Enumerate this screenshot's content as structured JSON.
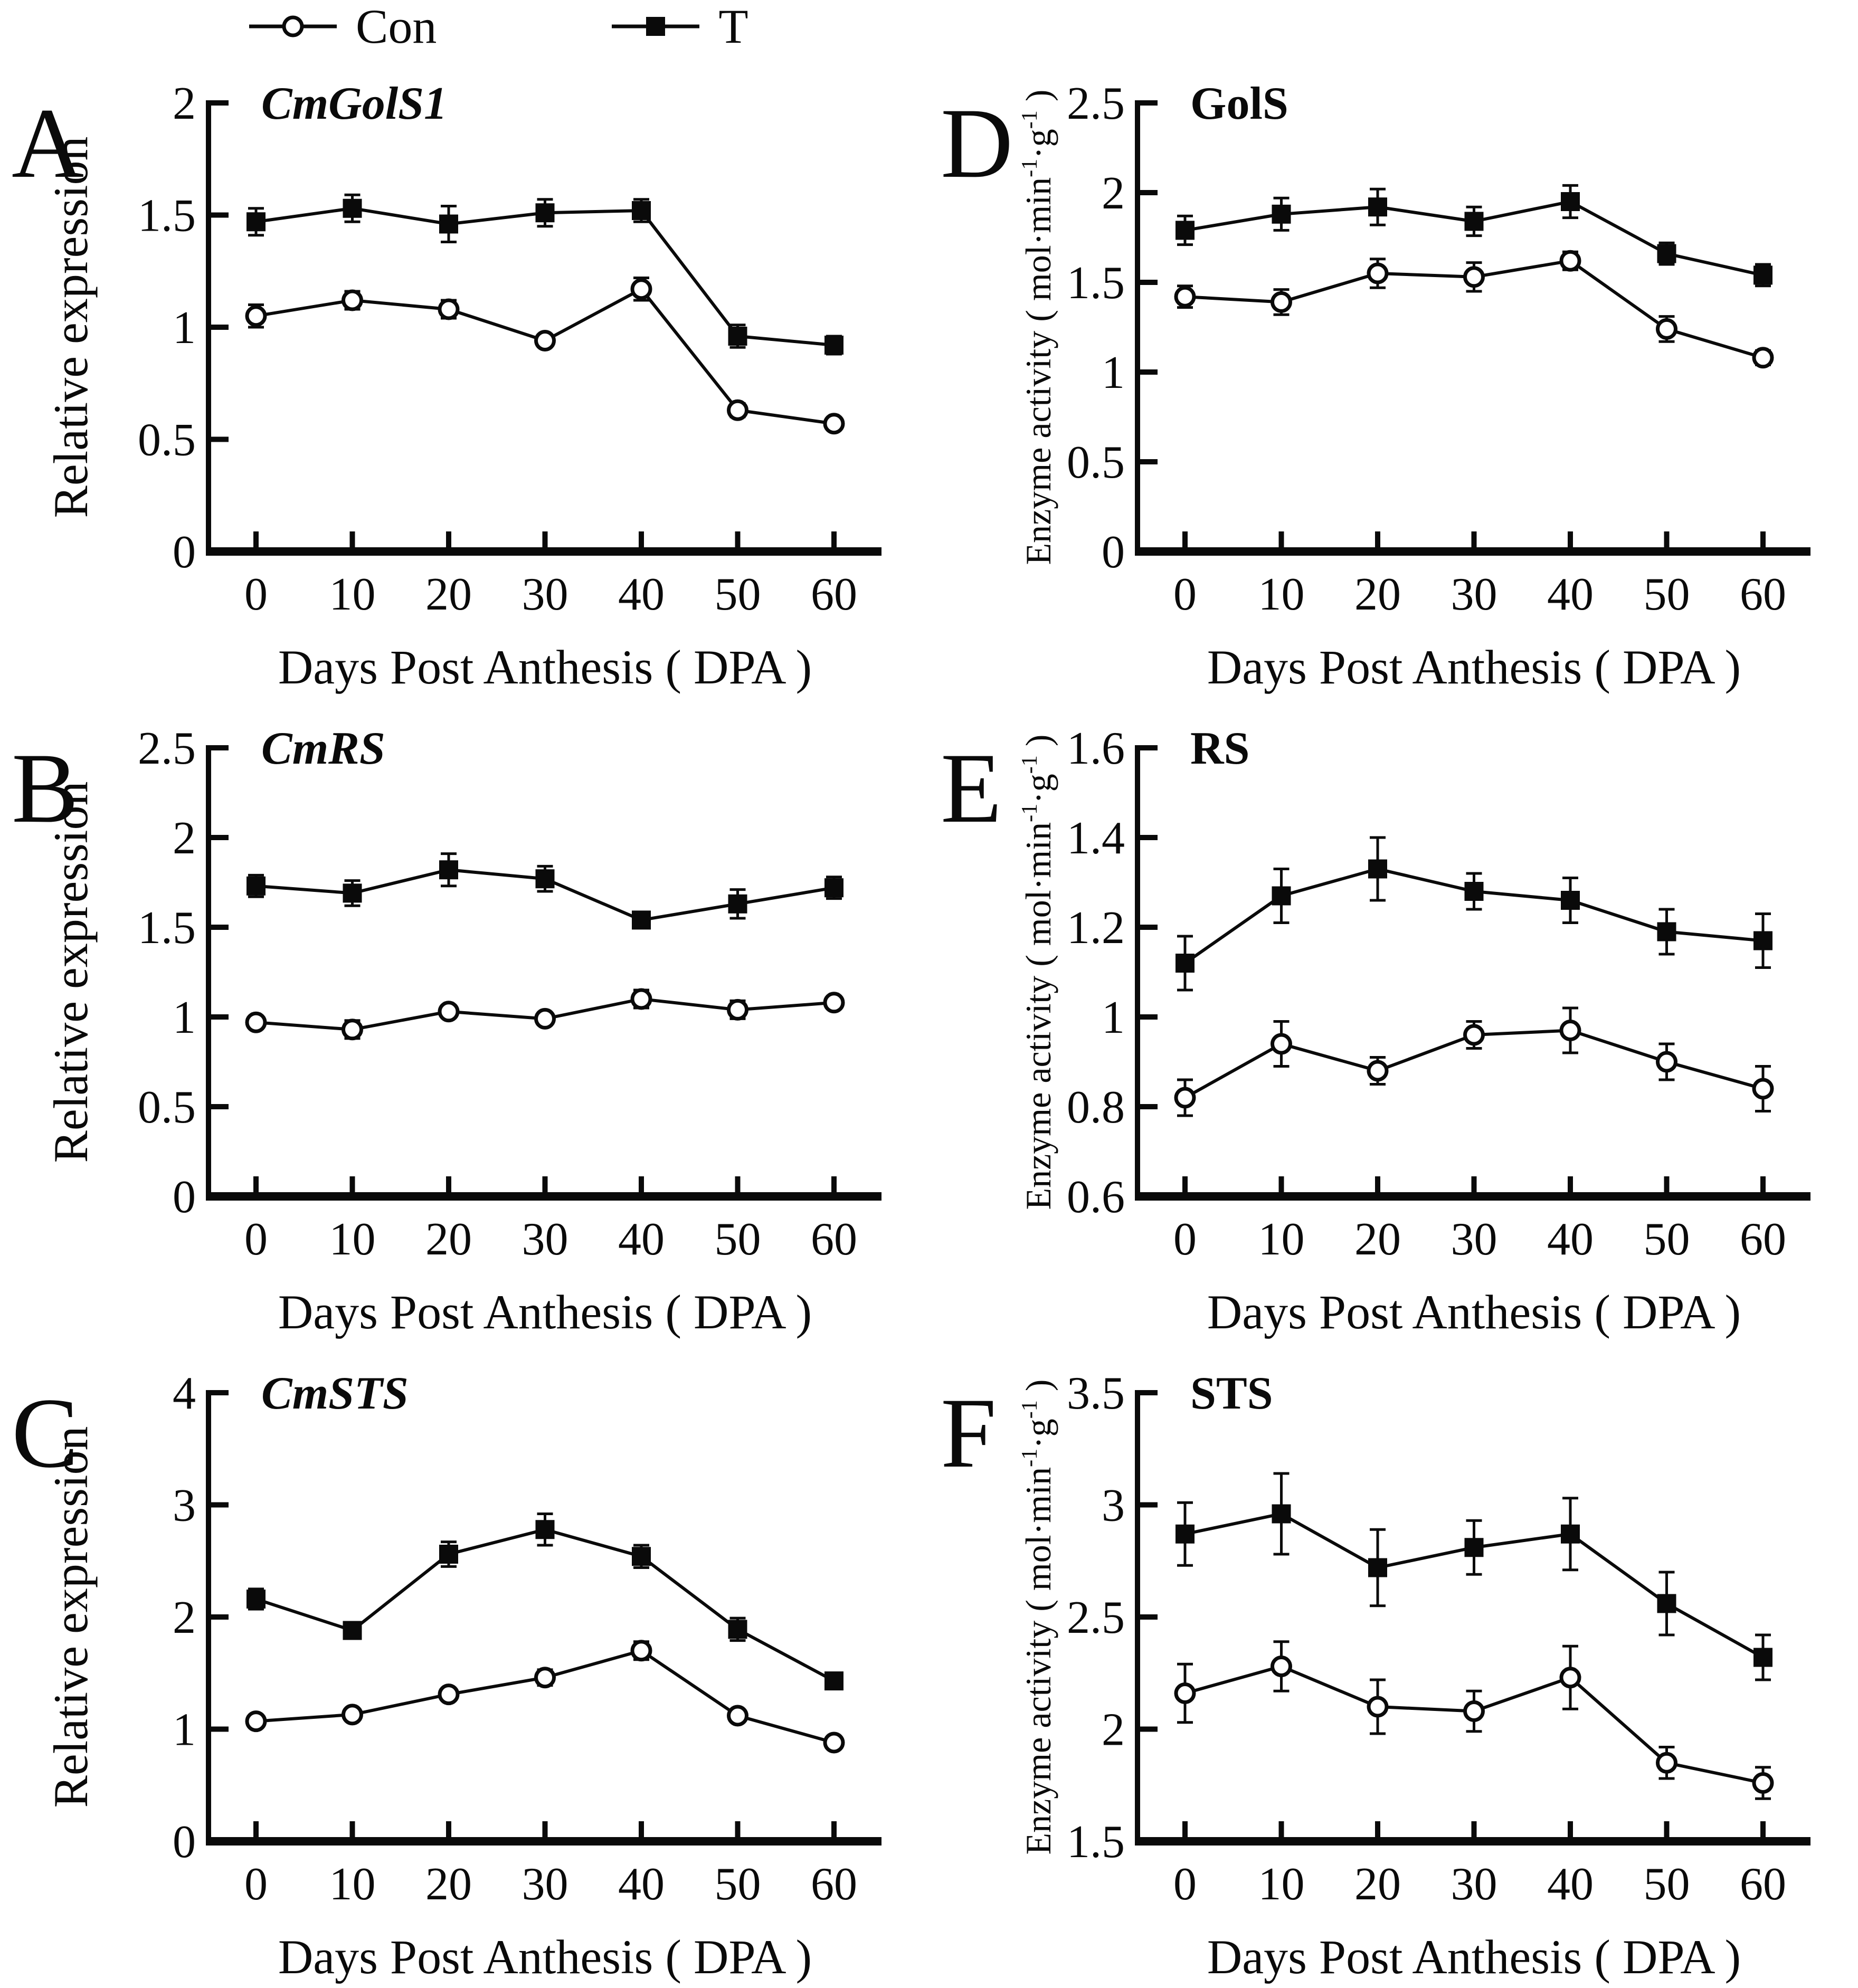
{
  "figure": {
    "background": "#ffffff",
    "foreground": "#0a0a0a"
  },
  "legend": {
    "items": [
      {
        "id": "con",
        "label": "Con",
        "marker": "open-circle"
      },
      {
        "id": "t",
        "label": "T",
        "marker": "filled-square"
      }
    ]
  },
  "chart_data": [
    {
      "panel": "A",
      "type": "line",
      "title": "CmGolS1",
      "title_style": "bold-italic",
      "xlabel": "Days Post Anthesis ( DPA )",
      "ylabel": "Relative expression",
      "ylabel_kind": "plain",
      "ylim": [
        0,
        2
      ],
      "yticks": {
        "values": [
          0,
          0.5,
          1,
          1.5,
          2
        ],
        "labels": [
          "0",
          "0.5",
          "1",
          "1.5",
          "2"
        ]
      },
      "x": [
        0,
        10,
        20,
        30,
        40,
        50,
        60
      ],
      "series": [
        {
          "name": "T",
          "marker": "filled-square",
          "values": [
            1.47,
            1.53,
            1.46,
            1.51,
            1.52,
            0.96,
            0.92
          ],
          "errors": [
            0.06,
            0.06,
            0.08,
            0.06,
            0.05,
            0.05,
            0.04
          ]
        },
        {
          "name": "Con",
          "marker": "open-circle",
          "values": [
            1.05,
            1.12,
            1.08,
            0.94,
            1.17,
            0.63,
            0.57
          ],
          "errors": [
            0.05,
            0.04,
            0.04,
            0.02,
            0.05,
            0.03,
            0.02
          ]
        }
      ]
    },
    {
      "panel": "D",
      "type": "line",
      "title": "GolS",
      "title_style": "bold",
      "xlabel": "Days Post Anthesis ( DPA )",
      "ylabel": "Enzyme activity ( mol·min⁻¹·g⁻¹ )",
      "ylabel_kind": "superscript",
      "ylim": [
        0,
        2.5
      ],
      "yticks": {
        "values": [
          0,
          0.5,
          1,
          1.5,
          2,
          2.5
        ],
        "labels": [
          "0",
          "0.5",
          "1",
          "1.5",
          "2",
          "2.5"
        ]
      },
      "x": [
        0,
        10,
        20,
        30,
        40,
        50,
        60
      ],
      "series": [
        {
          "name": "T",
          "marker": "filled-square",
          "values": [
            1.79,
            1.88,
            1.92,
            1.84,
            1.95,
            1.66,
            1.54
          ],
          "errors": [
            0.08,
            0.09,
            0.1,
            0.08,
            0.09,
            0.06,
            0.06
          ]
        },
        {
          "name": "Con",
          "marker": "open-circle",
          "values": [
            1.42,
            1.39,
            1.55,
            1.53,
            1.62,
            1.24,
            1.08
          ],
          "errors": [
            0.06,
            0.07,
            0.08,
            0.08,
            0.05,
            0.07,
            0.04
          ]
        }
      ]
    },
    {
      "panel": "B",
      "type": "line",
      "title": "CmRS",
      "title_style": "bold-italic",
      "xlabel": "Days Post Anthesis ( DPA )",
      "ylabel": "Relative expression",
      "ylabel_kind": "plain",
      "ylim": [
        0,
        2.5
      ],
      "yticks": {
        "values": [
          0,
          0.5,
          1,
          1.5,
          2,
          2.5
        ],
        "labels": [
          "0",
          "0.5",
          "1",
          "1.5",
          "2",
          "2.5"
        ]
      },
      "x": [
        0,
        10,
        20,
        30,
        40,
        50,
        60
      ],
      "series": [
        {
          "name": "T",
          "marker": "filled-square",
          "values": [
            1.73,
            1.69,
            1.82,
            1.77,
            1.54,
            1.63,
            1.72
          ],
          "errors": [
            0.06,
            0.07,
            0.09,
            0.07,
            0.03,
            0.08,
            0.06
          ]
        },
        {
          "name": "Con",
          "marker": "open-circle",
          "values": [
            0.97,
            0.93,
            1.03,
            0.99,
            1.1,
            1.04,
            1.08
          ],
          "errors": [
            0.03,
            0.05,
            0.02,
            0.03,
            0.05,
            0.05,
            0.03
          ]
        }
      ]
    },
    {
      "panel": "E",
      "type": "line",
      "title": "RS",
      "title_style": "bold",
      "xlabel": "Days Post Anthesis ( DPA )",
      "ylabel": "Enzyme activity ( mol·min⁻¹·g⁻¹ )",
      "ylabel_kind": "superscript",
      "ylim": [
        0.6,
        1.6
      ],
      "yticks": {
        "values": [
          0.6,
          0.8,
          1,
          1.2,
          1.4,
          1.6
        ],
        "labels": [
          "0.6",
          "0.8",
          "1",
          "1.2",
          "1.4",
          "1.6"
        ]
      },
      "x": [
        0,
        10,
        20,
        30,
        40,
        50,
        60
      ],
      "series": [
        {
          "name": "T",
          "marker": "filled-square",
          "values": [
            1.12,
            1.27,
            1.33,
            1.28,
            1.26,
            1.19,
            1.17
          ],
          "errors": [
            0.06,
            0.06,
            0.07,
            0.04,
            0.05,
            0.05,
            0.06
          ]
        },
        {
          "name": "Con",
          "marker": "open-circle",
          "values": [
            0.82,
            0.94,
            0.88,
            0.96,
            0.97,
            0.9,
            0.84
          ],
          "errors": [
            0.04,
            0.05,
            0.03,
            0.03,
            0.05,
            0.04,
            0.05
          ]
        }
      ]
    },
    {
      "panel": "C",
      "type": "line",
      "title": "CmSTS",
      "title_style": "bold-italic",
      "xlabel": "Days Post Anthesis  ( DPA )",
      "ylabel": "Relative expression",
      "ylabel_kind": "plain",
      "ylim": [
        0,
        4
      ],
      "yticks": {
        "values": [
          0,
          1,
          2,
          3,
          4
        ],
        "labels": [
          "0",
          "1",
          "2",
          "3",
          "4"
        ]
      },
      "x": [
        0,
        10,
        20,
        30,
        40,
        50,
        60
      ],
      "series": [
        {
          "name": "T",
          "marker": "filled-square",
          "values": [
            2.16,
            1.88,
            2.56,
            2.78,
            2.54,
            1.89,
            1.43
          ],
          "errors": [
            0.09,
            0.07,
            0.11,
            0.14,
            0.1,
            0.1,
            0.07
          ]
        },
        {
          "name": "Con",
          "marker": "open-circle",
          "values": [
            1.07,
            1.13,
            1.31,
            1.46,
            1.7,
            1.12,
            0.88
          ],
          "errors": [
            0.03,
            0.04,
            0.05,
            0.07,
            0.08,
            0.04,
            0.03
          ]
        }
      ]
    },
    {
      "panel": "F",
      "type": "line",
      "title": "STS",
      "title_style": "bold",
      "xlabel": "Days Post Anthesis ( DPA )",
      "ylabel": "Enzyme activity ( mol·min⁻¹·g⁻¹ )",
      "ylabel_kind": "superscript",
      "ylim": [
        1.5,
        3.5
      ],
      "yticks": {
        "values": [
          1.5,
          2,
          2.5,
          3,
          3.5
        ],
        "labels": [
          "1.5",
          "2",
          "2.5",
          "3",
          "3.5"
        ]
      },
      "x": [
        0,
        10,
        20,
        30,
        40,
        50,
        60
      ],
      "series": [
        {
          "name": "T",
          "marker": "filled-square",
          "values": [
            2.87,
            2.96,
            2.72,
            2.81,
            2.87,
            2.56,
            2.32
          ],
          "errors": [
            0.14,
            0.18,
            0.17,
            0.12,
            0.16,
            0.14,
            0.1
          ]
        },
        {
          "name": "Con",
          "marker": "open-circle",
          "values": [
            2.16,
            2.28,
            2.1,
            2.08,
            2.23,
            1.85,
            1.76
          ],
          "errors": [
            0.13,
            0.11,
            0.12,
            0.09,
            0.14,
            0.07,
            0.07
          ]
        }
      ]
    }
  ]
}
